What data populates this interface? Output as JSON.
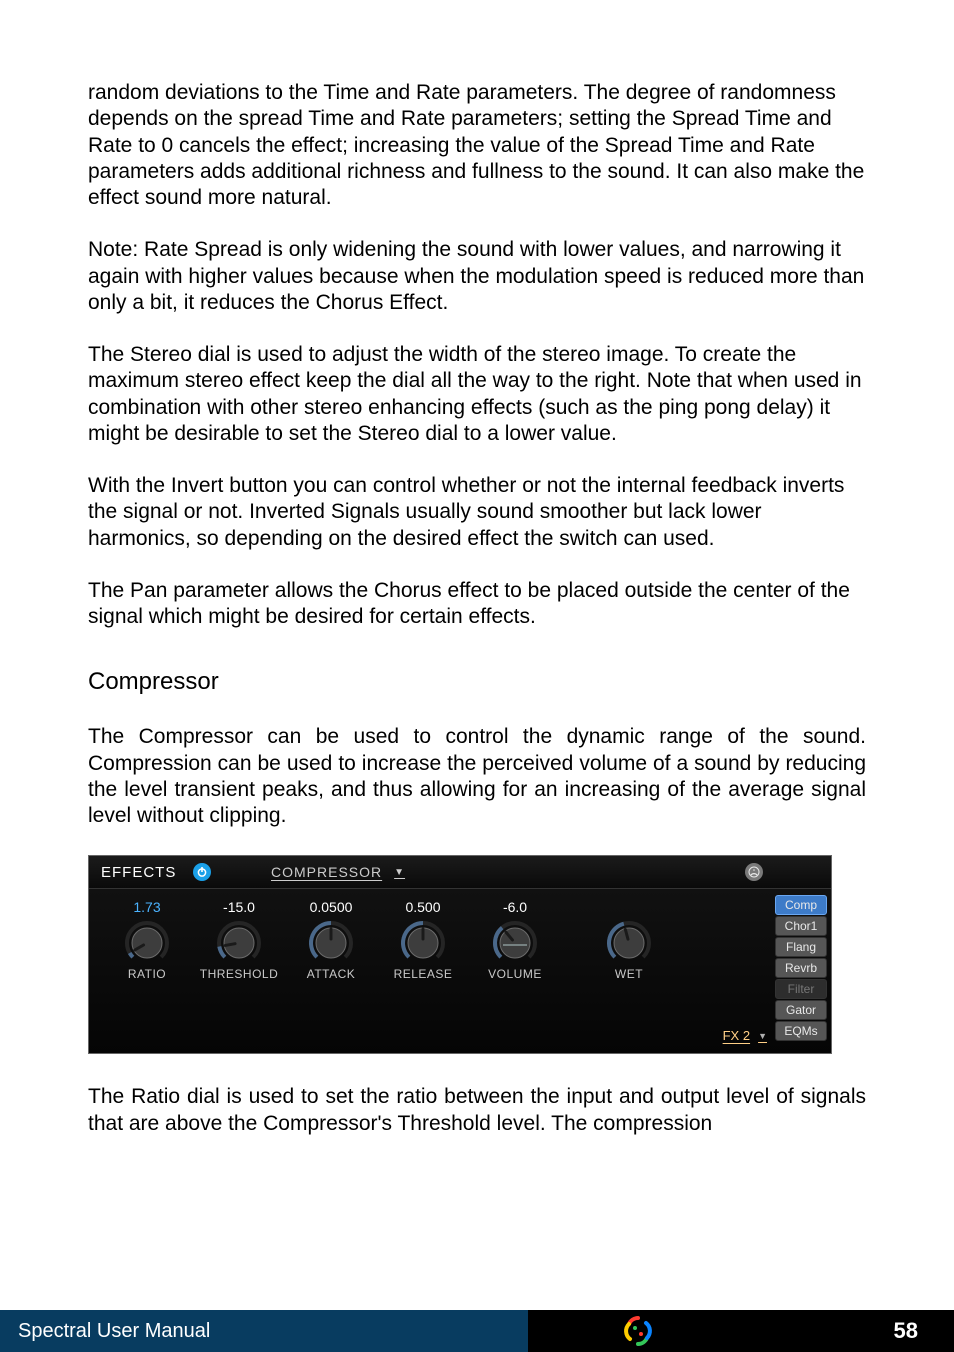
{
  "paragraphs": {
    "p1": "random deviations to the Time and Rate parameters. The degree of randomness depends on the spread Time and Rate parameters; setting the Spread Time and Rate to 0 cancels the effect; increasing the value of the Spread Time and Rate parameters adds additional richness and fullness to the sound. It can also make the effect sound more natural.",
    "p2": "Note: Rate Spread is only widening the sound with lower values, and narrowing it again with higher values because when the modulation speed is reduced more than only a bit, it reduces the Chorus Effect.",
    "p3": "The Stereo dial is used to adjust the width of the stereo image. To create the maximum stereo effect keep the dial all the way to the right. Note that when used in combination with other stereo enhancing effects (such as the ping pong delay) it might be desirable to set the Stereo dial to a lower value.",
    "p4": "With the Invert button you can control whether or not the internal feedback inverts the signal or not. Inverted Signals usually sound smoother but lack lower harmonics, so depending on the desired effect the switch can used.",
    "p5": "The Pan parameter allows the Chorus effect to be placed outside the center of the signal which might be desired for certain effects.",
    "heading": "Compressor",
    "p6": "The Compressor can be used to control the dynamic range of the sound. Compression can be used to increase the perceived volume of a sound by reducing the level transient peaks, and thus allowing for an increasing of the average signal level without clipping.",
    "p7": "The Ratio dial is used to set the ratio between the input and output level of signals that are above the Compressor's Threshold level. The compression"
  },
  "effects_panel": {
    "title": "EFFECTS",
    "selector_label": "COMPRESSOR",
    "fx_slot_label": "FX 2",
    "background_color": "#0e0e0e",
    "header_gradient": [
      "#1b1b1b",
      "#0a0a0a"
    ],
    "body_gradient": [
      "#111111",
      "#050505"
    ],
    "text_color": "#ffffff",
    "muted_text_color": "#c9c9c9",
    "accent_blue": "#4bb3ff",
    "power_button_color": "#1aa0e8",
    "midi_learn_color": "#7a7a7a",
    "fx_slot_color": "#ffcf86",
    "knob_arc_color": "#4a688a",
    "knob_arc_bg": "#252525",
    "knob_body_color": "#3d3d3d",
    "knob_rim_color": "#6b6b6b",
    "knob_tick_color": "#1a1a1a",
    "knobs": [
      {
        "value": "1.73",
        "label": "RATIO",
        "value_color": "blue",
        "angle": -120
      },
      {
        "value": "-15.0",
        "label": "THRESHOLD",
        "value_color": "white",
        "angle": -100
      },
      {
        "value": "0.0500",
        "label": "ATTACK",
        "value_color": "white",
        "angle": 0
      },
      {
        "value": "0.500",
        "label": "RELEASE",
        "value_color": "white",
        "angle": 0
      },
      {
        "value": "-6.0",
        "label": "VOLUME",
        "value_color": "white",
        "angle": -40
      }
    ],
    "wet_knob": {
      "label": "WET",
      "angle": -15
    },
    "tabs": [
      {
        "label": "Comp",
        "state": "active"
      },
      {
        "label": "Chor1",
        "state": "normal"
      },
      {
        "label": "Flang",
        "state": "normal"
      },
      {
        "label": "Revrb",
        "state": "normal"
      },
      {
        "label": "Filter",
        "state": "disabled"
      },
      {
        "label": "Gator",
        "state": "normal"
      },
      {
        "label": "EQMs",
        "state": "normal"
      }
    ],
    "tab_colors": {
      "normal_bg": "#565656",
      "active_bg": "#3d7bc8",
      "active_border": "#6aa7f2",
      "disabled_bg": "#2d2d2d",
      "disabled_text": "#777777"
    }
  },
  "footer": {
    "left_text": "Spectral User Manual",
    "page_number": "58",
    "left_bg": "#083c60",
    "right_bg": "#000000",
    "mid_bg": "#000000",
    "text_color": "#ffffff",
    "logo_colors": [
      "#ff3b30",
      "#ffcc00",
      "#34c759",
      "#0a84ff"
    ]
  }
}
